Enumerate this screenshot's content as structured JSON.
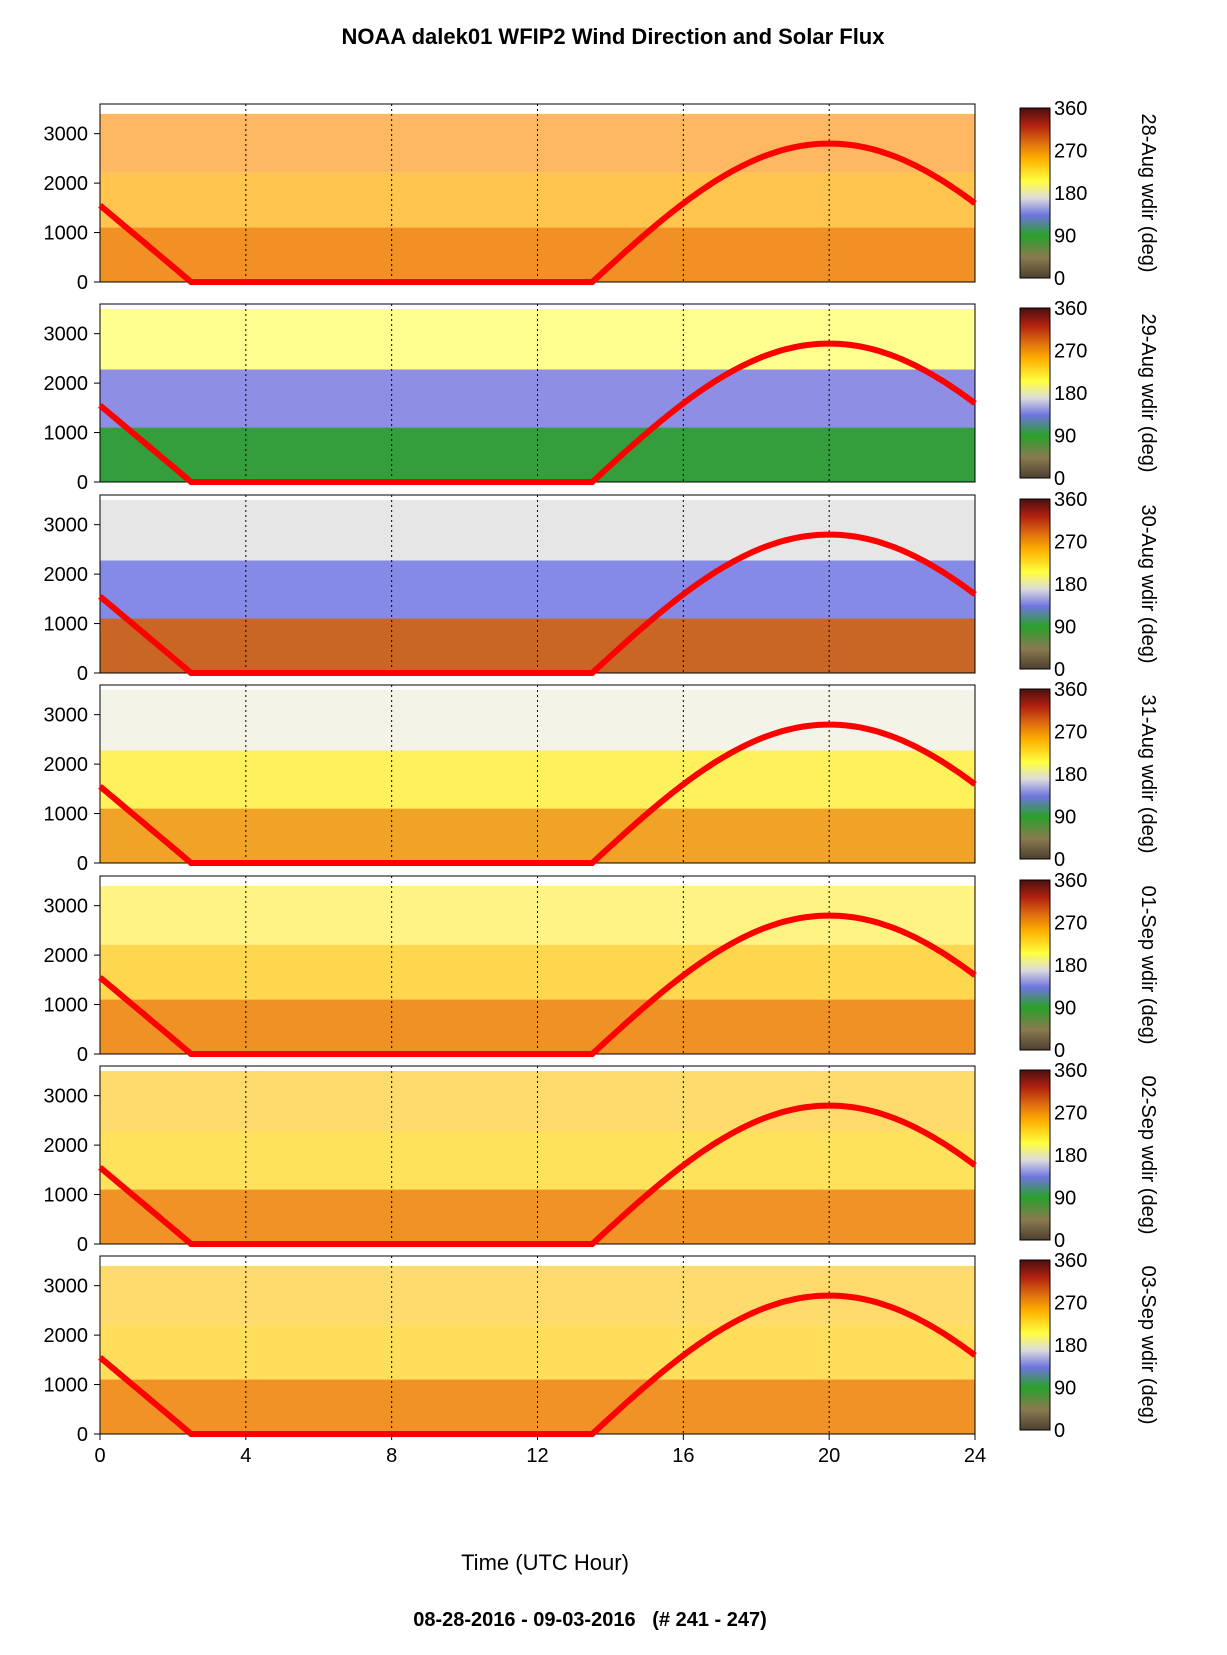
{
  "chart_data": {
    "type": "heatmap",
    "title": "NOAA dalek01 WFIP2 Wind Direction and Solar Flux",
    "footer": "08-28-2016 - 09-03-2016   (# 241 - 247)",
    "xlabel": "Time (UTC Hour)",
    "xlim": [
      0,
      24
    ],
    "x_ticks": [
      0,
      4,
      8,
      12,
      16,
      20,
      24
    ],
    "vertical_gridlines_dotted": [
      4,
      8,
      12,
      16,
      20
    ],
    "ylim": [
      0,
      3600
    ],
    "y_ticks": [
      0,
      1000,
      2000,
      3000
    ],
    "colorbar": {
      "label_suffix": "wdir (deg)",
      "ticks": [
        0,
        90,
        180,
        270,
        360
      ],
      "colors": [
        "#4d4030",
        "#8a7a50",
        "#2aa02a",
        "#6f75e0",
        "#dcdcdc",
        "#ffff40",
        "#ffb000",
        "#dd6b10",
        "#b02010",
        "#4a1010"
      ]
    },
    "solar_flux_curve_color": "#ff0000",
    "solar_flux_curve": {
      "note_points": [
        [
          0,
          1550
        ],
        [
          2.5,
          0
        ],
        [
          13.5,
          0
        ],
        [
          16,
          1550
        ],
        [
          20,
          2800
        ],
        [
          24,
          1700
        ]
      ]
    },
    "panels": [
      {
        "date": "28-Aug",
        "max_height": 3400,
        "top_band_color": "#ff9a20",
        "low_band_color": "#ee8a20",
        "upper_color": "#ffbb30"
      },
      {
        "date": "29-Aug",
        "max_height": 3500,
        "top_band_color": "#ffff60",
        "low_band_color": "#2aa02a",
        "upper_color": "#7a7ae0"
      },
      {
        "date": "30-Aug",
        "max_height": 3500,
        "top_band_color": "#dcdcdc",
        "low_band_color": "#d06010",
        "upper_color": "#6f75e0"
      },
      {
        "date": "31-Aug",
        "max_height": 3500,
        "top_band_color": "#eeeedd",
        "low_band_color": "#ee9a20",
        "upper_color": "#ffee40"
      },
      {
        "date": "01-Sep",
        "max_height": 3400,
        "top_band_color": "#ffee50",
        "low_band_color": "#ee8a20",
        "upper_color": "#ffd030"
      },
      {
        "date": "02-Sep",
        "max_height": 3500,
        "top_band_color": "#ffcc30",
        "low_band_color": "#ee8a20",
        "upper_color": "#ffdd40"
      },
      {
        "date": "03-Sep",
        "max_height": 3400,
        "top_band_color": "#ffcc30",
        "low_band_color": "#ee8a20",
        "upper_color": "#ffd840"
      }
    ]
  }
}
